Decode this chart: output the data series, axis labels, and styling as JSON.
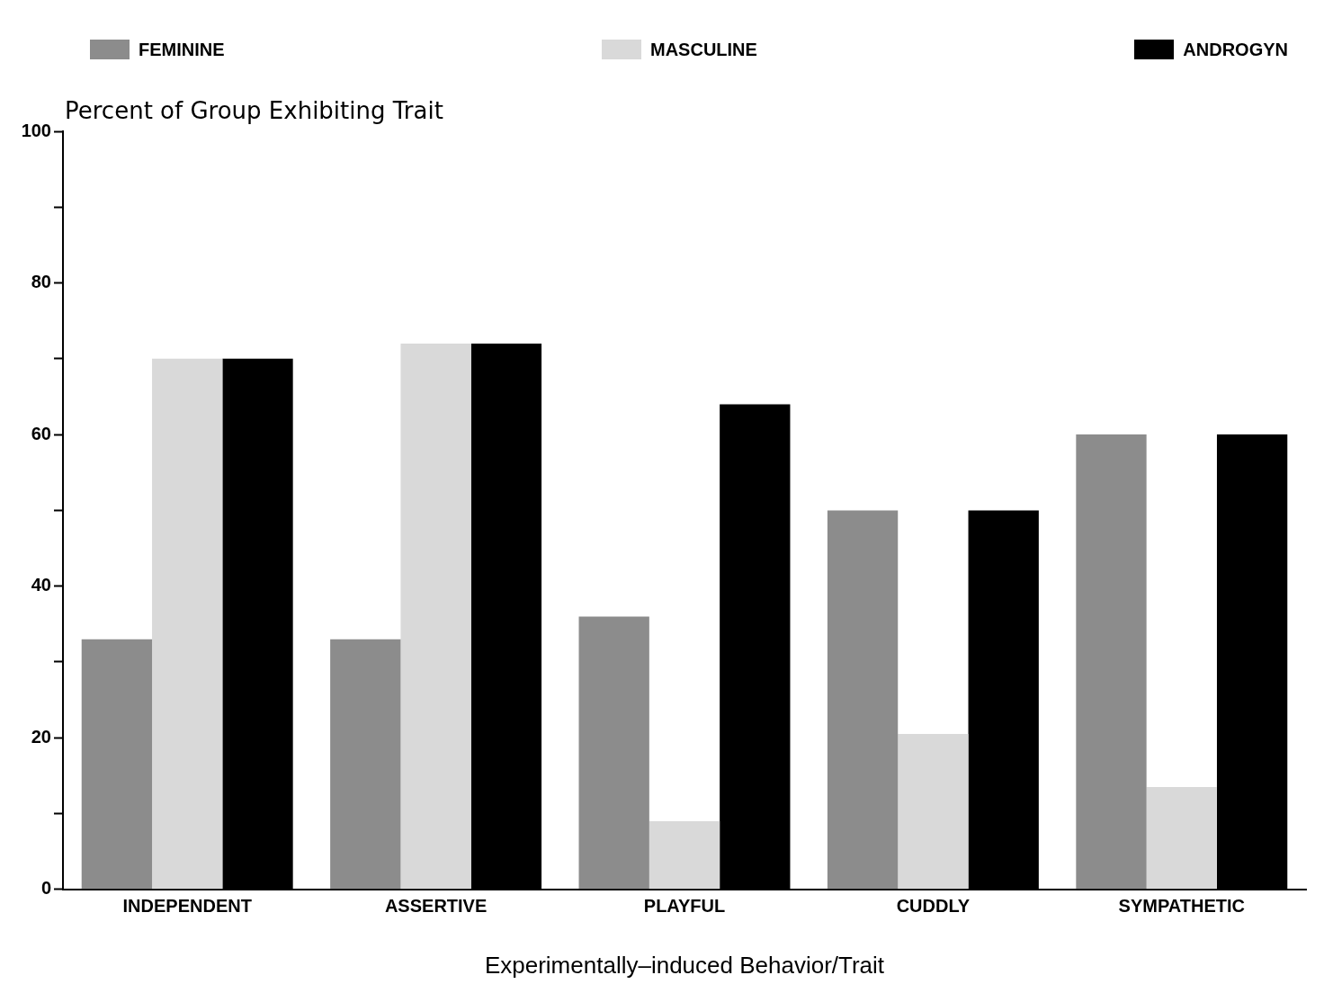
{
  "chart_data": {
    "type": "bar",
    "xlabel": "Experimentally–induced Behavior/Trait",
    "ylabel": "Percent of Group Exhibiting Trait",
    "categories": [
      "INDEPENDENT",
      "ASSERTIVE",
      "PLAYFUL",
      "CUDDLY",
      "SYMPATHETIC"
    ],
    "series": [
      {
        "name": "FEMININE",
        "color": "#8c8c8c",
        "values": [
          33,
          33,
          36,
          50,
          60
        ]
      },
      {
        "name": "MASCULINE",
        "color": "#d9d9d9",
        "values": [
          70,
          72,
          9,
          20.5,
          13.5
        ]
      },
      {
        "name": "ANDROGYN",
        "color": "#000000",
        "values": [
          70,
          72,
          64,
          50,
          60
        ]
      }
    ],
    "ylim": [
      0,
      100
    ],
    "yticks": [
      0,
      {
        "value": 10,
        "label": null
      },
      20,
      {
        "value": 30,
        "label": null
      },
      40,
      {
        "value": 50,
        "label": null
      },
      60,
      {
        "value": 70,
        "label": null
      },
      80,
      {
        "value": 90,
        "label": null
      },
      100
    ],
    "grid": false,
    "legend": "top"
  }
}
